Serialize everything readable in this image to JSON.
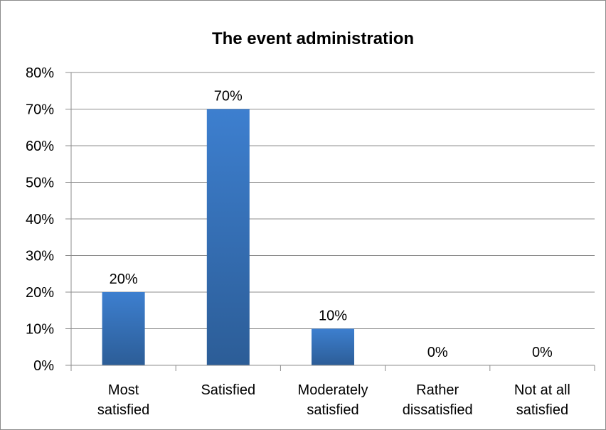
{
  "chart_data": {
    "type": "bar",
    "title": "The event administration",
    "categories": [
      [
        "Most",
        "satisfied"
      ],
      [
        "Satisfied"
      ],
      [
        "Moderately",
        "satisfied"
      ],
      [
        "Rather",
        "dissatisfied"
      ],
      [
        "Not at all",
        "satisfied"
      ]
    ],
    "values": [
      20,
      70,
      10,
      0,
      0
    ],
    "data_labels": [
      "20%",
      "70%",
      "10%",
      "0%",
      "0%"
    ],
    "ylim": [
      0,
      80
    ],
    "y_ticks": [
      "0%",
      "10%",
      "20%",
      "30%",
      "40%",
      "50%",
      "60%",
      "70%",
      "80%"
    ],
    "grid": true,
    "legend": "none",
    "colors": {
      "bar_top": "#3d7fcf",
      "bar_bottom": "#2c5d97",
      "grid": "#8c8c8c",
      "axis": "#8c8c8c"
    }
  }
}
